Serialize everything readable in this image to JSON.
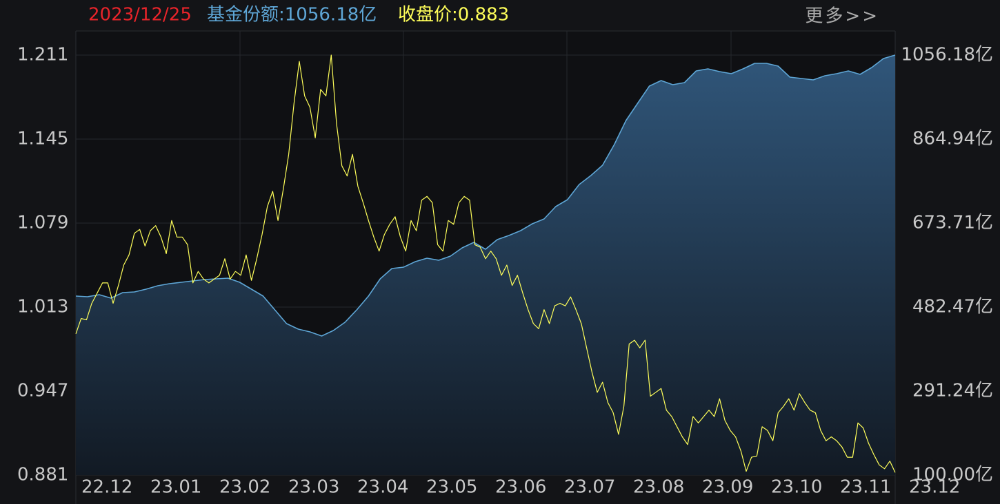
{
  "header": {
    "date": "2023/12/25",
    "items": [
      "基金份额:1056.18亿",
      "收盘价:0.883"
    ],
    "more": "更多>>"
  },
  "chart_data": {
    "type": "line",
    "x_labels": [
      "22.12",
      "23.01",
      "23.02",
      "23.03",
      "23.04",
      "23.05",
      "23.06",
      "23.07",
      "23.08",
      "23.09",
      "23.10",
      "23.11",
      "23.12"
    ],
    "ylim": [
      0.881,
      1.211
    ],
    "yticks": [
      1.211,
      1.145,
      1.079,
      1.013,
      0.947,
      0.881
    ],
    "y2lim": [
      100,
      1056.18
    ],
    "y2ticks": [
      {
        "value": 1056.18,
        "label": "1056.18亿"
      },
      {
        "value": 864.94,
        "label": "864.94亿"
      },
      {
        "value": 673.71,
        "label": "673.71亿"
      },
      {
        "value": 482.47,
        "label": "482.47亿"
      },
      {
        "value": 291.24,
        "label": "291.24亿"
      },
      {
        "value": 100,
        "label": "100.00亿"
      }
    ],
    "grid": true,
    "series": [
      {
        "color": "#5ea6d6",
        "axis": "y2",
        "fill": true,
        "values": [
          507.6,
          506.0,
          510.7,
          502.9,
          515.4,
          517.0,
          523.2,
          531.1,
          535.8,
          538.9,
          542.1,
          545.2,
          546.8,
          548.3,
          538.9,
          523.2,
          507.6,
          476.2,
          444.9,
          432.3,
          426.1,
          416.7,
          429.2,
          448.0,
          476.2,
          507.6,
          546.8,
          570.3,
          573.4,
          585.9,
          593.8,
          589.1,
          598.5,
          617.3,
          629.8,
          614.2,
          636.1,
          645.5,
          656.5,
          672.2,
          683.1,
          711.3,
          727.0,
          761.5,
          781.9,
          805.4,
          852.4,
          907.3,
          946.5,
          985.7,
          998.2,
          988.8,
          993.5,
          1020.1,
          1024.8,
          1018.6,
          1013.9,
          1024.8,
          1037.4,
          1037.4,
          1031.1,
          1006.0,
          1002.9,
          999.8,
          1009.2,
          1013.9,
          1020.1,
          1012.3,
          1028.0,
          1048.4,
          1056.18
        ]
      },
      {
        "color": "#ffff5a",
        "values": [
          0.992,
          1.004,
          1.003,
          1.016,
          1.024,
          1.032,
          1.032,
          1.016,
          1.03,
          1.046,
          1.054,
          1.071,
          1.074,
          1.061,
          1.073,
          1.077,
          1.068,
          1.055,
          1.081,
          1.068,
          1.068,
          1.062,
          1.032,
          1.041,
          1.035,
          1.032,
          1.035,
          1.038,
          1.051,
          1.035,
          1.041,
          1.038,
          1.054,
          1.034,
          1.051,
          1.07,
          1.092,
          1.104,
          1.081,
          1.106,
          1.133,
          1.173,
          1.206,
          1.179,
          1.17,
          1.146,
          1.184,
          1.179,
          1.211,
          1.157,
          1.124,
          1.116,
          1.133,
          1.108,
          1.095,
          1.081,
          1.068,
          1.057,
          1.07,
          1.078,
          1.084,
          1.068,
          1.057,
          1.081,
          1.073,
          1.097,
          1.1,
          1.095,
          1.062,
          1.057,
          1.081,
          1.078,
          1.095,
          1.1,
          1.097,
          1.062,
          1.06,
          1.051,
          1.057,
          1.051,
          1.038,
          1.046,
          1.03,
          1.038,
          1.024,
          1.011,
          1.0,
          0.996,
          1.011,
          1.0,
          1.014,
          1.016,
          1.014,
          1.021,
          1.011,
          1.0,
          0.981,
          0.962,
          0.946,
          0.954,
          0.938,
          0.93,
          0.913,
          0.935,
          0.984,
          0.987,
          0.981,
          0.987,
          0.943,
          0.946,
          0.949,
          0.932,
          0.927,
          0.919,
          0.911,
          0.905,
          0.927,
          0.922,
          0.927,
          0.932,
          0.927,
          0.941,
          0.924,
          0.916,
          0.911,
          0.9,
          0.884,
          0.895,
          0.896,
          0.919,
          0.916,
          0.908,
          0.93,
          0.935,
          0.941,
          0.932,
          0.945,
          0.938,
          0.932,
          0.93,
          0.916,
          0.908,
          0.911,
          0.908,
          0.903,
          0.895,
          0.895,
          0.922,
          0.918,
          0.906,
          0.897,
          0.889,
          0.886,
          0.892,
          0.883
        ]
      }
    ]
  }
}
